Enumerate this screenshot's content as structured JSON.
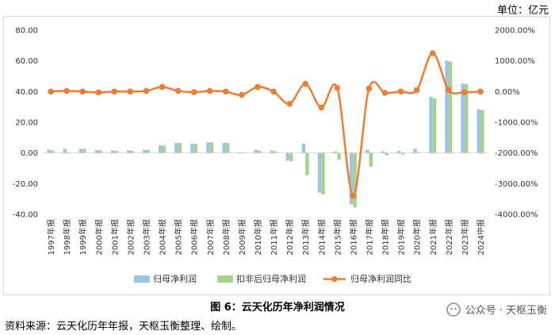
{
  "unit_label": "单位：亿元",
  "caption": "图 6：云天化历年净利润情况",
  "source": "资料来源：云天化历年年报，天枢玉衡整理、绘制。",
  "watermark": "公众号 · 天枢玉衡",
  "chart_data": {
    "type": "bar+line",
    "categories": [
      "1997年报",
      "1998年报",
      "1999年报",
      "2000年报",
      "2001年报",
      "2002年报",
      "2003年报",
      "2004年报",
      "2005年报",
      "2006年报",
      "2007年报",
      "2008年报",
      "2009年报",
      "2010年报",
      "2011年报",
      "2012年报",
      "2013年报",
      "2014年报",
      "2015年报",
      "2016年报",
      "2017年报",
      "2018年报",
      "2019年报",
      "2020年报",
      "2021年报",
      "2022年报",
      "2023年报",
      "2024中报"
    ],
    "series": [
      {
        "name": "归母净利润",
        "type": "bar",
        "axis": "left",
        "color": "#9dc3e6",
        "values": [
          2.2,
          2.7,
          2.8,
          1.8,
          1.6,
          1.7,
          2.0,
          5.0,
          6.5,
          6.0,
          7.0,
          6.5,
          0.5,
          2.0,
          1.5,
          -5.0,
          6.0,
          -25.8,
          1.0,
          -33.5,
          2.0,
          1.0,
          1.3,
          2.8,
          36.5,
          60.2,
          45.2,
          28.5
        ]
      },
      {
        "name": "扣非后归母净利润",
        "type": "bar",
        "axis": "left",
        "color": "#a9d18e",
        "values": [
          1.6,
          0.4,
          2.8,
          1.6,
          1.4,
          1.4,
          2.0,
          4.8,
          6.5,
          6.0,
          7.0,
          6.5,
          0.3,
          1.5,
          1.0,
          -5.5,
          -14.5,
          -27.0,
          -4.5,
          -35.5,
          -9.0,
          -1.5,
          -1.0,
          0.5,
          35.5,
          59.5,
          45.0,
          28.0
        ]
      },
      {
        "name": "归母净利润同比",
        "type": "line",
        "axis": "right",
        "color": "#ed7d31",
        "values": [
          0,
          20,
          0,
          -30,
          0,
          0,
          20,
          150,
          20,
          -20,
          20,
          0,
          -110,
          150,
          0,
          -400,
          250,
          -520,
          120,
          -3400,
          100,
          -40,
          0,
          50,
          1250,
          50,
          -20,
          0
        ]
      }
    ],
    "left_axis": {
      "min": -40,
      "max": 80,
      "step": 20,
      "tick_labels": [
        "80.00",
        "60.00",
        "40.00",
        "20.00",
        "0.00",
        "-20.00",
        "-40.00"
      ]
    },
    "right_axis": {
      "min": -4000,
      "max": 2000,
      "step": 1000,
      "tick_labels": [
        "2000.00%",
        "1000.00%",
        "0.00%",
        "-1000.00%",
        "-2000.00%",
        "-3000.00%",
        "-4000.00%"
      ]
    },
    "legend_position": "bottom",
    "grid": false
  }
}
